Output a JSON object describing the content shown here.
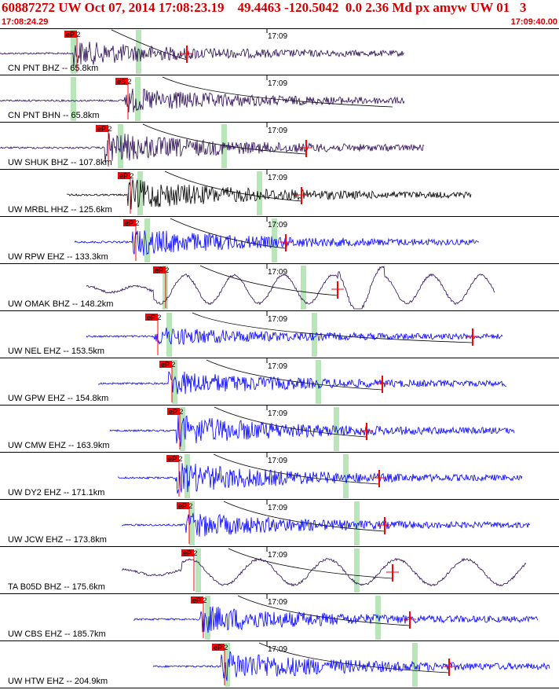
{
  "header": {
    "title": "60887272 UW Oct 07, 2014 17:08:23.19    49.4463 -120.5042  0.0 2.36 Md px amyw UW 01   3",
    "start_time": "17:08:24.29",
    "end_time": "17:09:40.00"
  },
  "colors": {
    "header_text": "#d40000",
    "pick_box": "#ff0000",
    "velocity_trace": "#0000ff",
    "broadband_trace": "#2a0a55",
    "strong_motion_trace": "#000000",
    "window_band": "#b8e6b8",
    "travel_time_curve": "#000000"
  },
  "minute_label": "17:09",
  "traces": [
    {
      "station": "CN PNT BHZ -- 65.8km",
      "pick": "eP 2",
      "color": "dark",
      "kind": "p"
    },
    {
      "station": "CN PNT BHN -- 65.8km",
      "pick": "eS 2",
      "color": "dark",
      "kind": "s"
    },
    {
      "station": "UW SHUK BHZ -- 107.8km",
      "pick": "eP 2",
      "color": "dark",
      "kind": "p"
    },
    {
      "station": "UW MRBL HHZ -- 125.6km",
      "pick": "eP 2",
      "color": "black",
      "kind": "p"
    },
    {
      "station": "UW RPW EHZ -- 133.3km",
      "pick": "eP 2",
      "color": "blue",
      "kind": "p"
    },
    {
      "station": "UW OMAK BHZ -- 148.2km",
      "pick": "eP 2",
      "color": "dark",
      "kind": "p"
    },
    {
      "station": "UW NEL EHZ -- 153.5km",
      "pick": "eP 2",
      "color": "blue",
      "kind": "p"
    },
    {
      "station": "UW GPW EHZ -- 154.8km",
      "pick": "eP 2",
      "color": "blue",
      "kind": "p"
    },
    {
      "station": "UW CMW EHZ -- 163.9km",
      "pick": "eP 2",
      "color": "blue",
      "kind": "p"
    },
    {
      "station": "UW DY2 EHZ -- 171.1km",
      "pick": "eP 2",
      "color": "blue",
      "kind": "p"
    },
    {
      "station": "UW JCW EHZ -- 173.8km",
      "pick": "eP 2",
      "color": "blue",
      "kind": "p"
    },
    {
      "station": "TA B05D BHZ -- 175.6km",
      "pick": "eP 2",
      "color": "dark",
      "kind": "p"
    },
    {
      "station": "UW CBS EHZ -- 185.7km",
      "pick": "eP 2",
      "color": "blue",
      "kind": "p"
    },
    {
      "station": "UW HTW EHZ -- 204.9km",
      "pick": "eP 2",
      "color": "blue",
      "kind": "p"
    }
  ]
}
